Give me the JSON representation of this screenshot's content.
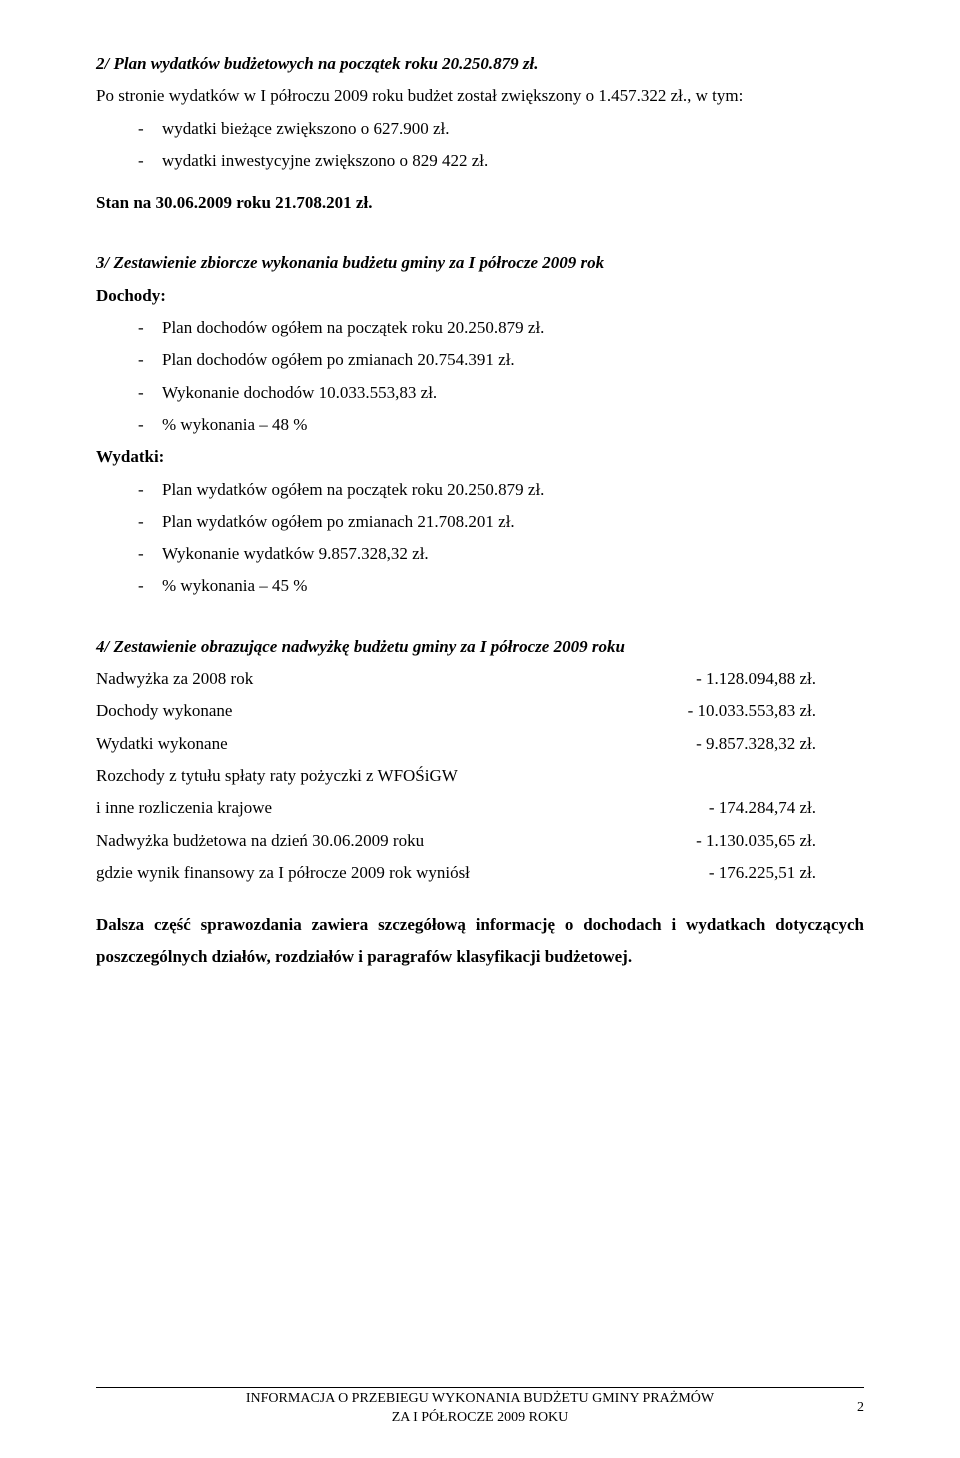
{
  "sec2": {
    "heading": "2/ Plan wydatków budżetowych na początek roku 20.250.879 zł.",
    "intro": "Po stronie wydatków w I półroczu 2009 roku budżet został zwiększony o 1.457.322 zł., w tym:",
    "items": [
      "wydatki bieżące zwiększono o 627.900 zł.",
      "wydatki inwestycyjne zwiększono o 829 422 zł."
    ],
    "stan": "Stan na 30.06.2009 roku 21.708.201 zł."
  },
  "sec3": {
    "heading": "3/ Zestawienie zbiorcze wykonania budżetu gminy za I półrocze 2009 rok",
    "dochody_label": "Dochody:",
    "dochody_items": [
      "Plan dochodów ogółem na początek roku 20.250.879 zł.",
      "Plan dochodów ogółem po zmianach 20.754.391 zł.",
      "Wykonanie dochodów 10.033.553,83 zł.",
      "% wykonania – 48 %"
    ],
    "wydatki_label": "Wydatki:",
    "wydatki_items": [
      "Plan wydatków ogółem na początek roku 20.250.879 zł.",
      "Plan wydatków ogółem po zmianach 21.708.201 zł.",
      "Wykonanie wydatków 9.857.328,32 zł.",
      "% wykonania – 45 %"
    ]
  },
  "sec4": {
    "heading": "4/ Zestawienie obrazujące nadwyżkę budżetu gminy za I półrocze 2009 roku",
    "rows": [
      {
        "label": "Nadwyżka za 2008 rok",
        "value": "-   1.128.094,88 zł."
      },
      {
        "label": "Dochody wykonane",
        "value": "- 10.033.553,83 zł."
      },
      {
        "label": "Wydatki wykonane",
        "value": "-   9.857.328,32 zł."
      }
    ],
    "rozchody_line1": "Rozchody z tytułu spłaty raty pożyczki z WFOŚiGW",
    "rozchody_row": {
      "label": "i inne rozliczenia krajowe",
      "value": "-      174.284,74 zł."
    },
    "rows2": [
      {
        "label": "Nadwyżka budżetowa na dzień 30.06.2009 roku",
        "value": "-   1.130.035,65 zł."
      },
      {
        "label": "gdzie wynik finansowy za I półrocze 2009 rok wyniósł",
        "value": "-      176.225,51 zł."
      }
    ]
  },
  "closing": "Dalsza część sprawozdania zawiera szczegółową informację o dochodach i wydatkach dotyczących poszczególnych działów, rozdziałów i paragrafów klasyfikacji budżetowej.",
  "footer": {
    "line1": "INFORMACJA O PRZEBIEGU WYKONANIA BUDŻETU GMINY PRAŻMÓW",
    "line2": "ZA I PÓŁROCZE 2009 ROKU",
    "page": "2"
  }
}
